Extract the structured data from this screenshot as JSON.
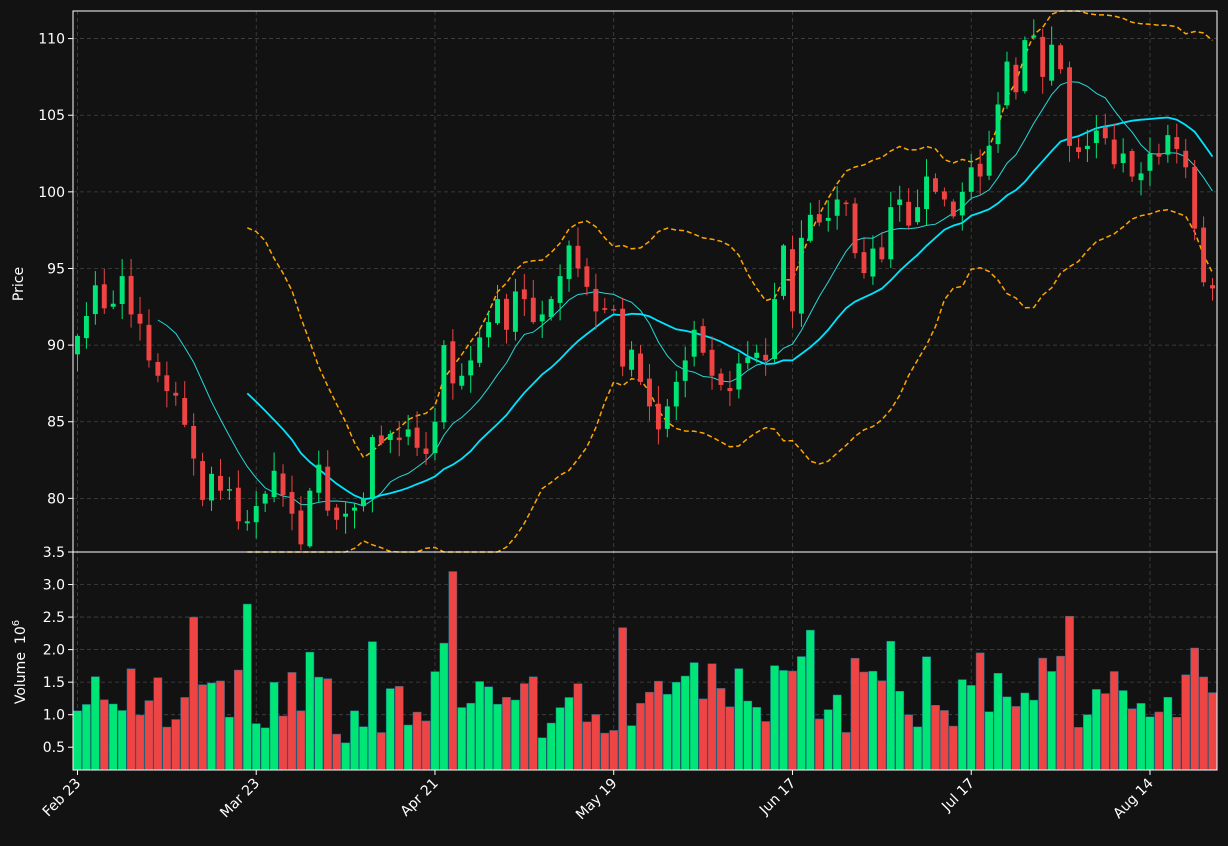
{
  "chart_data": {
    "type": "candlestick",
    "colors": {
      "background": "#121212",
      "up": "#00e676",
      "down": "#ef4444",
      "sma_fast": "#26d7d7",
      "sma_slow": "#00e5ff",
      "bollinger": "#ffa500",
      "grid": "#444444",
      "text": "#ffffff"
    },
    "price_panel": {
      "ylabel": "Price",
      "ylim": [
        76.5,
        111.8
      ],
      "yticks": [
        80,
        85,
        90,
        95,
        100,
        105,
        110
      ],
      "grid": true
    },
    "volume_panel": {
      "ylabel": "Volume",
      "unit": "10",
      "unit_exp": "6",
      "ylim": [
        0.15,
        3.5
      ],
      "yticks": [
        0.5,
        1.0,
        1.5,
        2.0,
        2.5,
        3.0,
        3.5
      ],
      "ytick_labels": [
        "0.5",
        "1.0",
        "1.5",
        "2.0",
        "2.5",
        "3.0",
        "3.5"
      ]
    },
    "x_ticks": [
      {
        "label": "Feb 23",
        "index": 0
      },
      {
        "label": "Mar 23",
        "index": 20
      },
      {
        "label": "Apr 21",
        "index": 40
      },
      {
        "label": "May 19",
        "index": 60
      },
      {
        "label": "Jun 17",
        "index": 80
      },
      {
        "label": "Jul 17",
        "index": 100
      },
      {
        "label": "Aug 14",
        "index": 120
      }
    ],
    "close": [
      90.6,
      91.9,
      93.9,
      92.4,
      92.7,
      94.5,
      92.0,
      91.4,
      89.0,
      88.0,
      87.0,
      86.7,
      84.8,
      82.6,
      79.9,
      81.6,
      80.5,
      80.6,
      78.5,
      78.5,
      79.5,
      80.3,
      81.8,
      80.2,
      79.0,
      77.0,
      80.5,
      82.2,
      79.2,
      78.6,
      79.0,
      79.4,
      80.0,
      84.0,
      83.6,
      84.2,
      83.8,
      84.5,
      83.3,
      82.9,
      85.0,
      90.0,
      87.5,
      88.0,
      89.0,
      90.5,
      91.5,
      93.0,
      91.0,
      93.5,
      93.0,
      91.5,
      92.0,
      93.0,
      94.5,
      96.5,
      95.0,
      93.8,
      92.2,
      92.3,
      92.3,
      88.6,
      89.7,
      87.6,
      86.0,
      84.5,
      86.0,
      87.6,
      89.0,
      91.0,
      89.5,
      88.0,
      87.4,
      87.0,
      88.8,
      89.2,
      89.5,
      89.0,
      93.0,
      96.5,
      92.2,
      97.0,
      98.5,
      98.0,
      98.3,
      99.5,
      99.2,
      96.0,
      94.7,
      96.3,
      95.6,
      99.0,
      99.5,
      97.8,
      99.0,
      101.0,
      100.0,
      99.5,
      98.4,
      100.0,
      101.6,
      101.0,
      103.0,
      105.7,
      108.5,
      106.5,
      109.9,
      110.2,
      107.5,
      109.6,
      108.0,
      103.0,
      102.6,
      103.0,
      104.0,
      103.5,
      101.8,
      102.5,
      101.0,
      101.2,
      102.5,
      102.3,
      103.7,
      102.8,
      101.6,
      97.6,
      94.1,
      93.7
    ]
  }
}
